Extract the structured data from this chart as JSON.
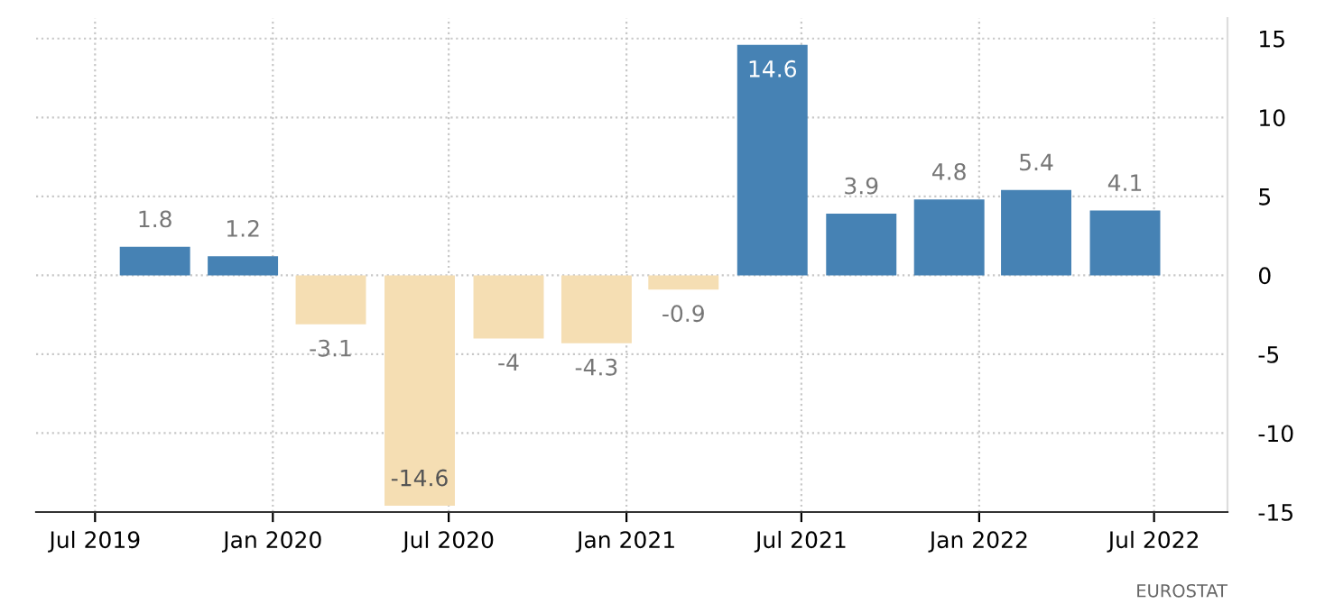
{
  "chart_data": {
    "type": "bar",
    "x": [
      "2019-09",
      "2019-12",
      "2020-03",
      "2020-06",
      "2020-09",
      "2020-12",
      "2021-03",
      "2021-06",
      "2021-09",
      "2021-12",
      "2022-03",
      "2022-06"
    ],
    "values": [
      1.8,
      1.2,
      -3.1,
      -14.6,
      -4,
      -4.3,
      -0.9,
      14.6,
      3.9,
      4.8,
      5.4,
      4.1
    ],
    "colors": [
      "#4682b4",
      "#4682b4",
      "#f5deb3",
      "#f5deb3",
      "#f5deb3",
      "#f5deb3",
      "#f5deb3",
      "#4682b4",
      "#4682b4",
      "#4682b4",
      "#4682b4",
      "#4682b4"
    ],
    "data_labels": true,
    "xlim": [
      "2019-05-01",
      "2022-09-15"
    ],
    "xticks": [
      {
        "value": "2019-07",
        "label": "Jul 2019"
      },
      {
        "value": "2020-01",
        "label": "Jan 2020"
      },
      {
        "value": "2020-07",
        "label": "Jul 2020"
      },
      {
        "value": "2021-01",
        "label": "Jan 2021"
      },
      {
        "value": "2021-07",
        "label": "Jul 2021"
      },
      {
        "value": "2022-01",
        "label": "Jan 2022"
      },
      {
        "value": "2022-07",
        "label": "Jul 2022"
      }
    ],
    "ylim": [
      -15,
      16.3
    ],
    "yticks": [
      -15,
      -10,
      -5,
      0,
      5,
      10,
      15
    ],
    "grid": true,
    "annotations": [
      "EUROSTAT"
    ]
  }
}
